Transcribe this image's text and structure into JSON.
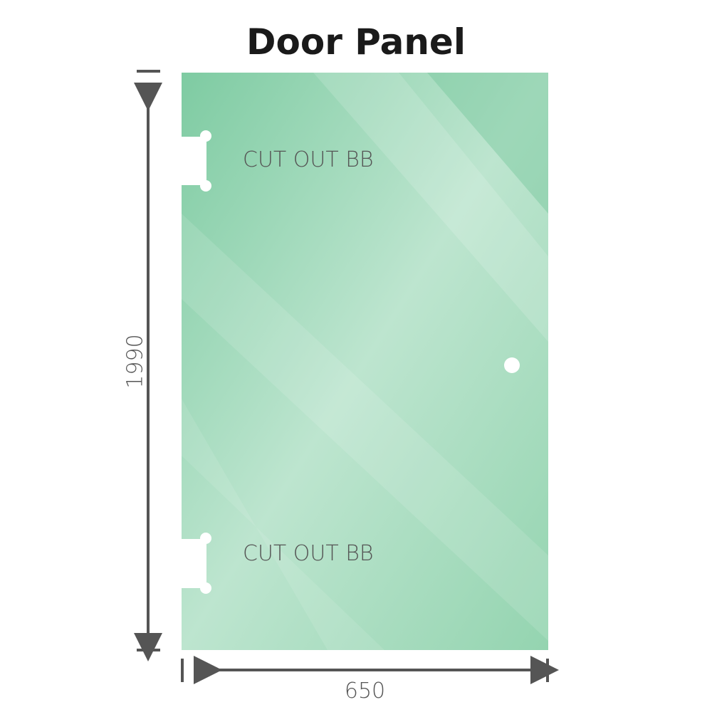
{
  "title": "Door Panel",
  "cutout_top_label": "CUT OUT BB",
  "cutout_bottom_label": "CUT OUT BB",
  "width_label": "650",
  "height_label": "1990",
  "colors": {
    "glass": "#86cfa8",
    "glass_light": "#b9e4cd",
    "dimension": "#555555"
  }
}
